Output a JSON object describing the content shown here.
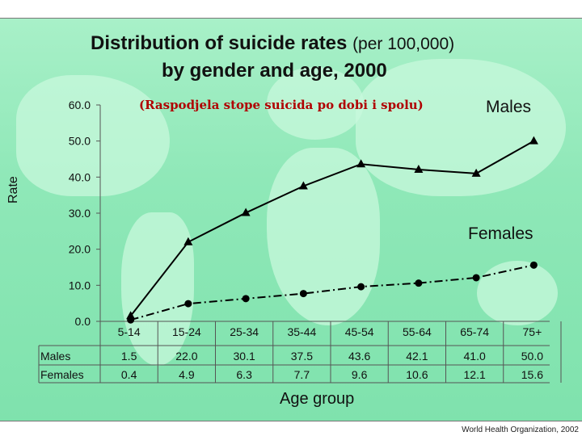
{
  "chart_data": {
    "type": "line",
    "title": "Distribution of suicide rates",
    "title_unit": "(per 100,000)",
    "title_line2": "by gender and age, 2000",
    "subtitle": "(Raspodjela stope suicida po dobi i spolu)",
    "xlabel": "Age group",
    "ylabel": "Rate",
    "ylim": [
      0,
      60
    ],
    "yticks": [
      "0.0",
      "10.0",
      "20.0",
      "30.0",
      "40.0",
      "50.0",
      "60.0"
    ],
    "categories": [
      "5-14",
      "15-24",
      "25-34",
      "35-44",
      "45-54",
      "55-64",
      "65-74",
      "75+"
    ],
    "series": [
      {
        "name": "Males",
        "marker": "triangle",
        "style": "solid",
        "values": [
          1.5,
          22.0,
          30.1,
          37.5,
          43.6,
          42.1,
          41.0,
          50.0
        ],
        "labels": [
          "1.5",
          "22.0",
          "30.1",
          "37.5",
          "43.6",
          "42.1",
          "41.0",
          "50.0"
        ]
      },
      {
        "name": "Females",
        "marker": "circle",
        "style": "dash-dot",
        "values": [
          0.4,
          4.9,
          6.3,
          7.7,
          9.6,
          10.6,
          12.1,
          15.6
        ],
        "labels": [
          "0.4",
          "4.9",
          "6.3",
          "7.7",
          "9.6",
          "10.6",
          "12.1",
          "15.6"
        ]
      }
    ]
  },
  "credit": "World Health Organization, 2002",
  "colors": {
    "background": "#8fe8b8",
    "line": "#000000",
    "subtitle": "#b00000"
  }
}
